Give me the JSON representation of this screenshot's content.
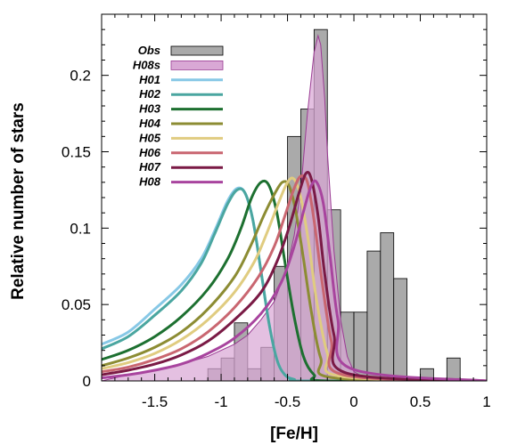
{
  "chart_data": {
    "type": "bar+line",
    "title": "",
    "xlabel": "[Fe/H]",
    "ylabel": "Relative number of stars",
    "xlim": [
      -1.9,
      1.0
    ],
    "ylim": [
      0,
      0.24
    ],
    "xticks": [
      "-1.5",
      "-1",
      "-0.5",
      "0",
      "0.5",
      "1"
    ],
    "xtick_values": [
      -1.5,
      -1.0,
      -0.5,
      0.0,
      0.5,
      1.0
    ],
    "yticks": [
      "0",
      "0.05",
      "0.1",
      "0.15",
      "0.2"
    ],
    "ytick_values": [
      0,
      0.05,
      0.1,
      0.15,
      0.2
    ],
    "grid": false,
    "legend_position": "top-left",
    "histogram": {
      "name": "Obs",
      "color": "#aaaaaa",
      "bin_width": 0.1,
      "bin_starts": [
        -1.1,
        -1.0,
        -0.9,
        -0.8,
        -0.7,
        -0.6,
        -0.5,
        -0.4,
        -0.3,
        -0.2,
        -0.1,
        0.0,
        0.1,
        0.2,
        0.3,
        0.5,
        0.7
      ],
      "values": [
        0.008,
        0.015,
        0.038,
        0.008,
        0.022,
        0.075,
        0.16,
        0.178,
        0.23,
        0.112,
        0.045,
        0.045,
        0.085,
        0.097,
        0.067,
        0.008,
        0.015
      ]
    },
    "area": {
      "name": "H08s",
      "fill": "#d9a8d5",
      "stroke": "#9a3b93",
      "x": [
        -1.9,
        -1.7,
        -1.5,
        -1.3,
        -1.1,
        -0.9,
        -0.8,
        -0.7,
        -0.6,
        -0.5,
        -0.45,
        -0.4,
        -0.35,
        -0.3,
        -0.27,
        -0.25,
        -0.22,
        -0.2,
        -0.15,
        -0.1,
        -0.05,
        0.0,
        0.1,
        0.2,
        0.5,
        1.0
      ],
      "y": [
        0.0,
        0.004,
        0.007,
        0.011,
        0.016,
        0.024,
        0.03,
        0.04,
        0.052,
        0.075,
        0.095,
        0.125,
        0.175,
        0.215,
        0.226,
        0.22,
        0.185,
        0.15,
        0.085,
        0.04,
        0.016,
        0.006,
        0.001,
        0.0,
        0.0,
        0.0
      ]
    },
    "series": [
      {
        "name": "H01",
        "color": "#87c8e6",
        "x": [
          -1.9,
          -1.7,
          -1.5,
          -1.3,
          -1.15,
          -1.05,
          -0.95,
          -0.88,
          -0.82,
          -0.76,
          -0.7,
          -0.64,
          -0.58,
          -0.52,
          -0.45,
          -0.35,
          1.0
        ],
        "y": [
          0.024,
          0.032,
          0.047,
          0.063,
          0.08,
          0.098,
          0.118,
          0.126,
          0.123,
          0.105,
          0.072,
          0.038,
          0.014,
          0.004,
          0.001,
          0.0,
          0.0
        ]
      },
      {
        "name": "H02",
        "color": "#4aa6a0",
        "x": [
          -1.9,
          -1.7,
          -1.5,
          -1.3,
          -1.15,
          -1.05,
          -0.95,
          -0.88,
          -0.82,
          -0.76,
          -0.7,
          -0.64,
          -0.58,
          -0.52,
          -0.45,
          -0.35,
          1.0
        ],
        "y": [
          0.021,
          0.029,
          0.043,
          0.059,
          0.077,
          0.096,
          0.116,
          0.125,
          0.123,
          0.105,
          0.072,
          0.038,
          0.014,
          0.004,
          0.001,
          0.0,
          0.0
        ]
      },
      {
        "name": "H03",
        "color": "#1d7030",
        "x": [
          -1.9,
          -1.7,
          -1.5,
          -1.3,
          -1.1,
          -0.95,
          -0.85,
          -0.77,
          -0.7,
          -0.64,
          -0.58,
          -0.52,
          -0.45,
          -0.38,
          -0.3,
          -0.2,
          1.0
        ],
        "y": [
          0.014,
          0.02,
          0.029,
          0.042,
          0.06,
          0.08,
          0.1,
          0.12,
          0.13,
          0.128,
          0.11,
          0.078,
          0.042,
          0.016,
          0.004,
          0.0,
          0.0
        ]
      },
      {
        "name": "H04",
        "color": "#8c8c33",
        "x": [
          -1.9,
          -1.7,
          -1.5,
          -1.3,
          -1.1,
          -0.9,
          -0.78,
          -0.68,
          -0.6,
          -0.54,
          -0.49,
          -0.44,
          -0.38,
          -0.32,
          -0.25,
          -0.15,
          1.0
        ],
        "y": [
          0.01,
          0.015,
          0.022,
          0.032,
          0.047,
          0.068,
          0.088,
          0.108,
          0.122,
          0.13,
          0.128,
          0.112,
          0.08,
          0.045,
          0.015,
          0.002,
          0.0
        ]
      },
      {
        "name": "H05",
        "color": "#e0cc80",
        "x": [
          -1.9,
          -1.7,
          -1.5,
          -1.3,
          -1.1,
          -0.9,
          -0.75,
          -0.65,
          -0.57,
          -0.5,
          -0.45,
          -0.4,
          -0.34,
          -0.28,
          -0.2,
          -0.1,
          1.0
        ],
        "y": [
          0.008,
          0.012,
          0.018,
          0.027,
          0.04,
          0.058,
          0.078,
          0.098,
          0.116,
          0.13,
          0.132,
          0.12,
          0.09,
          0.052,
          0.018,
          0.003,
          0.0
        ]
      },
      {
        "name": "H06",
        "color": "#c96670",
        "x": [
          -1.9,
          -1.7,
          -1.5,
          -1.3,
          -1.1,
          -0.9,
          -0.72,
          -0.6,
          -0.52,
          -0.45,
          -0.4,
          -0.35,
          -0.3,
          -0.24,
          -0.17,
          -0.08,
          1.0
        ],
        "y": [
          0.006,
          0.009,
          0.014,
          0.021,
          0.032,
          0.048,
          0.068,
          0.088,
          0.108,
          0.126,
          0.134,
          0.13,
          0.105,
          0.065,
          0.026,
          0.004,
          0.0
        ]
      },
      {
        "name": "H07",
        "color": "#7a1a45",
        "x": [
          -1.9,
          -1.7,
          -1.5,
          -1.3,
          -1.1,
          -0.9,
          -0.7,
          -0.58,
          -0.49,
          -0.41,
          -0.36,
          -0.32,
          -0.27,
          -0.22,
          -0.15,
          -0.05,
          1.0
        ],
        "y": [
          0.004,
          0.007,
          0.011,
          0.017,
          0.026,
          0.04,
          0.058,
          0.078,
          0.1,
          0.124,
          0.136,
          0.132,
          0.108,
          0.07,
          0.03,
          0.005,
          0.0
        ]
      },
      {
        "name": "H08",
        "color": "#a8449e",
        "x": [
          -1.9,
          -1.7,
          -1.5,
          -1.3,
          -1.1,
          -0.9,
          -0.7,
          -0.55,
          -0.45,
          -0.37,
          -0.32,
          -0.28,
          -0.23,
          -0.18,
          -0.12,
          -0.02,
          1.0
        ],
        "y": [
          0.002,
          0.004,
          0.007,
          0.011,
          0.018,
          0.028,
          0.044,
          0.064,
          0.088,
          0.114,
          0.128,
          0.13,
          0.116,
          0.082,
          0.04,
          0.008,
          0.0
        ]
      }
    ]
  }
}
